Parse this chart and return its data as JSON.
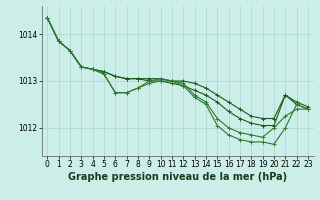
{
  "title": "Graphe pression niveau de la mer (hPa)",
  "bg_color": "#cceee8",
  "grid_color": "#aad4ce",
  "line_colors": [
    "#1a5c1a",
    "#1a5c1a",
    "#2d7a2d",
    "#2d7a2d"
  ],
  "xlim": [
    -0.5,
    23.5
  ],
  "ylim": [
    1011.4,
    1014.6
  ],
  "yticks": [
    1012,
    1013,
    1014
  ],
  "xticks": [
    0,
    1,
    2,
    3,
    4,
    5,
    6,
    7,
    8,
    9,
    10,
    11,
    12,
    13,
    14,
    15,
    16,
    17,
    18,
    19,
    20,
    21,
    22,
    23
  ],
  "series": [
    [
      1014.35,
      1013.85,
      1013.65,
      1013.3,
      1013.25,
      1013.2,
      1013.1,
      1013.05,
      1013.05,
      1013.05,
      1013.05,
      1013.0,
      1013.0,
      1012.95,
      1012.85,
      1012.7,
      1012.55,
      1012.4,
      1012.25,
      1012.2,
      1012.2,
      1012.7,
      1012.55,
      1012.45
    ],
    [
      1014.35,
      1013.85,
      1013.65,
      1013.3,
      1013.25,
      1013.2,
      1013.1,
      1013.05,
      1013.05,
      1013.0,
      1013.0,
      1012.95,
      1012.9,
      1012.8,
      1012.7,
      1012.55,
      1012.35,
      1012.2,
      1012.1,
      1012.05,
      1012.05,
      1012.7,
      1012.5,
      1012.4
    ],
    [
      1014.35,
      1013.85,
      1013.65,
      1013.3,
      1013.25,
      1013.15,
      1012.75,
      1012.75,
      1012.85,
      1013.0,
      1013.05,
      1013.0,
      1012.95,
      1012.7,
      1012.55,
      1012.2,
      1012.0,
      1011.9,
      1011.85,
      1011.8,
      1012.0,
      1012.25,
      1012.4,
      1012.4
    ],
    [
      1014.35,
      1013.85,
      1013.65,
      1013.3,
      1013.25,
      1013.15,
      1012.75,
      1012.75,
      1012.85,
      1012.95,
      1013.0,
      1013.0,
      1012.9,
      1012.65,
      1012.5,
      1012.05,
      1011.85,
      1011.75,
      1011.7,
      1011.7,
      1011.65,
      1012.0,
      1012.5,
      1012.4
    ]
  ],
  "marker": "+",
  "markersize": 3,
  "linewidth": 0.8,
  "title_fontsize": 7,
  "tick_fontsize": 5.5
}
